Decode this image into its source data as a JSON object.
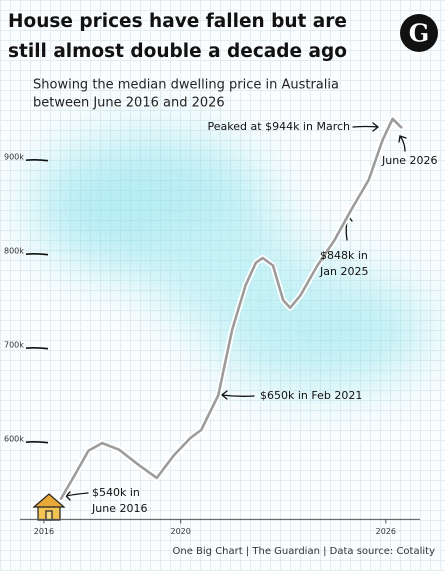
{
  "chart_data": {
    "type": "line",
    "title": [
      "House prices have fallen but are",
      "still almost double a decade ago"
    ],
    "subtitle": [
      "Showing the median dwelling price in Australia",
      "between June 2016 and 2026"
    ],
    "logo": "G",
    "source": "One Big Chart | The Guardian | Data source: Cotality",
    "x": [
      2016.5,
      2016.9,
      2017.3,
      2017.7,
      2018.2,
      2018.8,
      2019.3,
      2019.8,
      2020.3,
      2020.6,
      2021.1,
      2021.5,
      2021.9,
      2022.2,
      2022.4,
      2022.7,
      2023.0,
      2023.2,
      2023.5,
      2024.0,
      2024.5,
      2025.0,
      2025.5,
      2025.9,
      2026.2,
      2026.45
    ],
    "series": [
      {
        "name": "Median dwelling price",
        "color": "#9c9c9c",
        "values": [
          540,
          565,
          591,
          599,
          592,
          575,
          562,
          586,
          605,
          613,
          650,
          719,
          767,
          791,
          796,
          788,
          751,
          743,
          756,
          788,
          815,
          848,
          879,
          921,
          944,
          935
        ]
      }
    ],
    "xlim": [
      2015.3,
      2027
    ],
    "xticks": [
      2016,
      2020,
      2026
    ],
    "ylim": [
      520,
      950
    ],
    "yticks": [
      {
        "value": 600,
        "label": "600k"
      },
      {
        "value": 700,
        "label": "700k"
      },
      {
        "value": 800,
        "label": "800k"
      },
      {
        "value": 900,
        "label": "900k"
      }
    ],
    "annotations": [
      {
        "text": [
          "$540k in",
          "June 2016"
        ]
      },
      {
        "text": [
          "$650k in Feb 2021"
        ]
      },
      {
        "text": [
          "$848k in",
          "Jan 2025"
        ]
      },
      {
        "text": [
          "Peaked at $944k in March"
        ]
      },
      {
        "text": [
          "June 2026"
        ]
      }
    ]
  }
}
